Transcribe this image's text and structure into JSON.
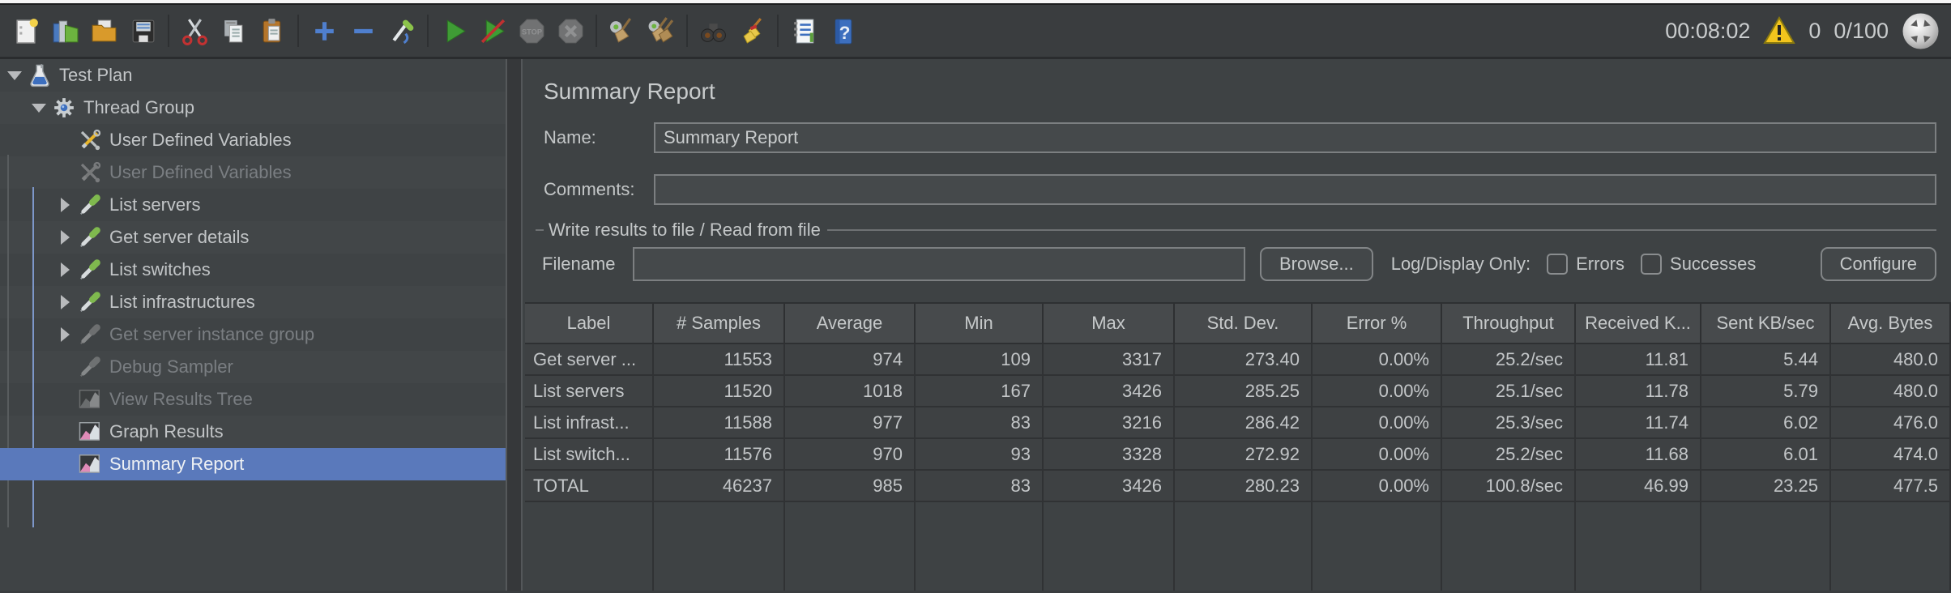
{
  "toolbar": {
    "groups": [
      [
        "new-file",
        "templates",
        "open",
        "save"
      ],
      [
        "cut",
        "copy",
        "paste"
      ],
      [
        "expand-all",
        "collapse-all",
        "toggle"
      ],
      [
        "start",
        "start-no-timers",
        "stop",
        "shutdown"
      ],
      [
        "clear",
        "clear-all"
      ],
      [
        "search",
        "search-reset"
      ],
      [
        "function-helper",
        "help"
      ]
    ],
    "disabled_icons": [
      "stop",
      "shutdown"
    ],
    "stop_icon_text": "STOP",
    "timer": "00:08:02",
    "warning_count": "0",
    "thread_status": "0/100"
  },
  "tree": {
    "items": [
      {
        "label": "Test Plan",
        "level": 0,
        "icon": "flask",
        "expander": "expanded",
        "enabled": true,
        "selected": false
      },
      {
        "label": "Thread Group",
        "level": 1,
        "icon": "gear",
        "expander": "expanded",
        "enabled": true,
        "selected": false
      },
      {
        "label": "User Defined Variables",
        "level": 2,
        "icon": "tools",
        "expander": "none",
        "enabled": true,
        "selected": false
      },
      {
        "label": "User Defined Variables",
        "level": 2,
        "icon": "tools",
        "expander": "none",
        "enabled": false,
        "selected": false
      },
      {
        "label": "List servers",
        "level": 2,
        "icon": "sampler",
        "expander": "collapsed",
        "enabled": true,
        "selected": false
      },
      {
        "label": "Get server details",
        "level": 2,
        "icon": "sampler",
        "expander": "collapsed",
        "enabled": true,
        "selected": false
      },
      {
        "label": "List switches",
        "level": 2,
        "icon": "sampler",
        "expander": "collapsed",
        "enabled": true,
        "selected": false
      },
      {
        "label": "List infrastructures",
        "level": 2,
        "icon": "sampler",
        "expander": "collapsed",
        "enabled": true,
        "selected": false
      },
      {
        "label": "Get server instance group",
        "level": 2,
        "icon": "sampler",
        "expander": "collapsed",
        "enabled": false,
        "selected": false
      },
      {
        "label": "Debug Sampler",
        "level": 2,
        "icon": "sampler",
        "expander": "none",
        "enabled": false,
        "selected": false
      },
      {
        "label": "View Results Tree",
        "level": 2,
        "icon": "chart",
        "expander": "none",
        "enabled": false,
        "selected": false
      },
      {
        "label": "Graph Results",
        "level": 2,
        "icon": "chart",
        "expander": "none",
        "enabled": true,
        "selected": false
      },
      {
        "label": "Summary Report",
        "level": 2,
        "icon": "chart",
        "expander": "none",
        "enabled": true,
        "selected": true
      }
    ]
  },
  "main": {
    "title": "Summary Report",
    "name_label": "Name:",
    "name_value": "Summary Report",
    "comments_label": "Comments:",
    "comments_value": "",
    "file_section": {
      "title": "Write results to file / Read from file",
      "filename_label": "Filename",
      "filename_value": "",
      "browse_label": "Browse...",
      "log_display_label": "Log/Display Only:",
      "errors_label": "Errors",
      "errors_checked": false,
      "successes_label": "Successes",
      "successes_checked": false,
      "configure_label": "Configure"
    },
    "table": {
      "columns": [
        "Label",
        "# Samples",
        "Average",
        "Min",
        "Max",
        "Std. Dev.",
        "Error %",
        "Throughput",
        "Received K...",
        "Sent KB/sec",
        "Avg. Bytes"
      ],
      "rows": [
        [
          "Get server ...",
          "11553",
          "974",
          "109",
          "3317",
          "273.40",
          "0.00%",
          "25.2/sec",
          "11.81",
          "5.44",
          "480.0"
        ],
        [
          "List servers",
          "11520",
          "1018",
          "167",
          "3426",
          "285.25",
          "0.00%",
          "25.1/sec",
          "11.78",
          "5.79",
          "480.0"
        ],
        [
          "List infrast...",
          "11588",
          "977",
          "83",
          "3216",
          "286.42",
          "0.00%",
          "25.3/sec",
          "11.74",
          "6.02",
          "476.0"
        ],
        [
          "List switch...",
          "11576",
          "970",
          "93",
          "3328",
          "272.92",
          "0.00%",
          "25.2/sec",
          "11.68",
          "6.01",
          "474.0"
        ],
        [
          "TOTAL",
          "46237",
          "985",
          "83",
          "3426",
          "280.23",
          "0.00%",
          "100.8/sec",
          "46.99",
          "23.25",
          "477.5"
        ]
      ]
    }
  },
  "colors": {
    "selection_blue": "#5a79bb",
    "warning_yellow": "#f2c41d",
    "start_green": "#3f9c35",
    "panel_bg": "#3e4244"
  }
}
